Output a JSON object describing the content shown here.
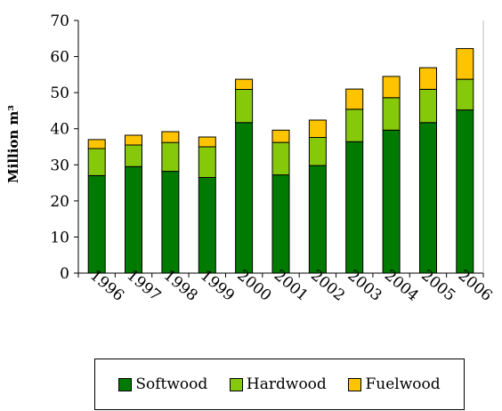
{
  "chart_data": {
    "type": "bar",
    "stacked": true,
    "title": "",
    "xlabel": "",
    "ylabel": "Million m³",
    "ylim": [
      0,
      70
    ],
    "yticks": [
      0,
      10,
      20,
      30,
      40,
      50,
      60,
      70
    ],
    "categories": [
      "1996",
      "1997",
      "1998",
      "1999",
      "2000",
      "2001",
      "2002",
      "2003",
      "2004",
      "2005",
      "2006"
    ],
    "series": [
      {
        "name": "Softwood",
        "color": "#007a00",
        "values": [
          27,
          29.5,
          28.2,
          26.5,
          41.7,
          27.2,
          29.8,
          36.4,
          39.6,
          41.7,
          45.2
        ]
      },
      {
        "name": "Hardwood",
        "color": "#86c80a",
        "values": [
          7.5,
          6.0,
          8.0,
          8.5,
          9.2,
          9.0,
          7.8,
          9.0,
          9.0,
          9.2,
          8.5
        ]
      },
      {
        "name": "Fuelwood",
        "color": "#ffc400",
        "values": [
          2.5,
          2.7,
          3.0,
          2.7,
          2.8,
          3.4,
          4.8,
          5.6,
          5.9,
          6.0,
          8.5
        ]
      }
    ],
    "grid": false,
    "legend_position": "bottom"
  }
}
